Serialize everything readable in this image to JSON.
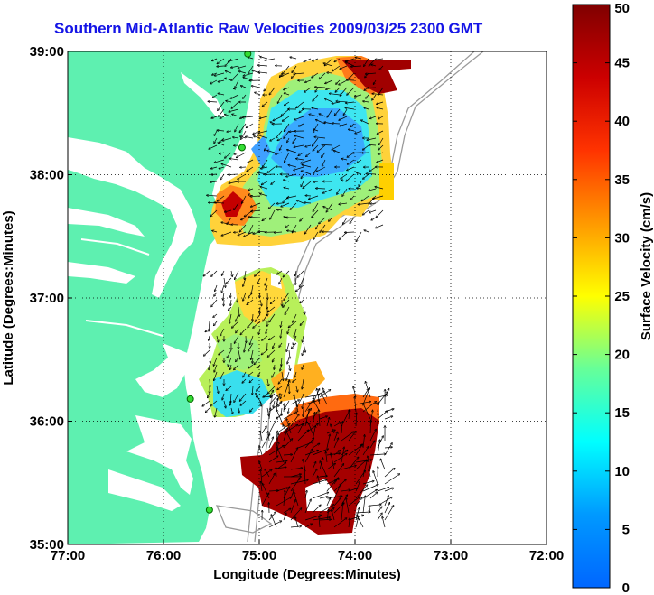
{
  "title": "Southern Mid-Atlantic Raw Velocities 2009/03/25 2300 GMT",
  "map": {
    "xlabel": "Longitude (Degrees:Minutes)",
    "ylabel": "Latitude (Degrees:Minutes)",
    "lon_ticks": [
      "77:00",
      "76:00",
      "75:00",
      "74:00",
      "73:00",
      "72:00"
    ],
    "lat_ticks": [
      "39:00",
      "38:00",
      "37:00",
      "36:00",
      "35:00"
    ],
    "lon_range": [
      -77,
      -72
    ],
    "lat_range": [
      35,
      39
    ],
    "land_color": "#5ef0b0",
    "grid": "dotted"
  },
  "colorbar": {
    "label": "Surface Velocity (cm/s)",
    "ticks": [
      "0",
      "5",
      "10",
      "15",
      "20",
      "25",
      "30",
      "35",
      "40",
      "45",
      "50"
    ],
    "range": [
      0,
      50
    ],
    "colormap": "jet"
  },
  "stations": [
    {
      "lon": -75.12,
      "lat": 38.98
    },
    {
      "lon": -75.18,
      "lat": 38.22
    },
    {
      "lon": -75.72,
      "lat": 36.18
    },
    {
      "lon": -75.52,
      "lat": 35.28
    }
  ]
}
